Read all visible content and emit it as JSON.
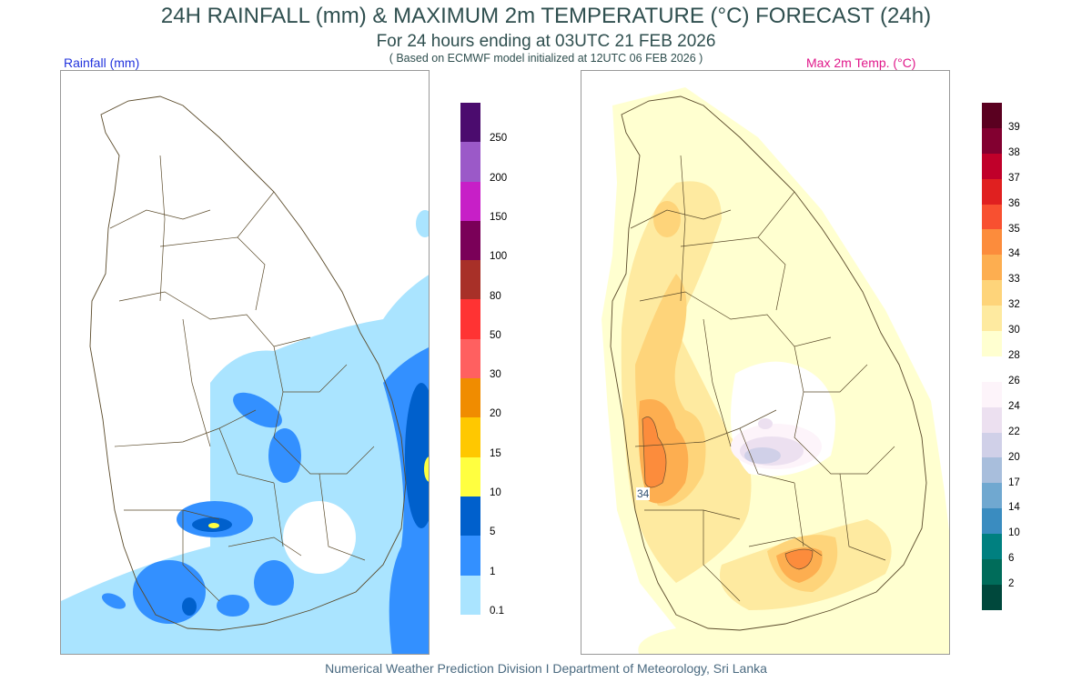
{
  "title": "24H RAINFALL (mm) & MAXIMUM 2m TEMPERATURE (°C) FORECAST (24h)",
  "subtitle": "For 24 hours ending at 03UTC 21 FEB 2026",
  "model_note": "( Based on ECMWF model initialized at 12UTC 06 FEB 2026 )",
  "rain_map": {
    "label": "Rainfall (mm)",
    "label_color": "#2233dd",
    "colorbar": {
      "colors": [
        "#4b0c6e",
        "#9b59c8",
        "#c71fc7",
        "#7a0058",
        "#a83028",
        "#ff3333",
        "#ff6060",
        "#f08c00",
        "#ffc800",
        "#ffff40",
        "#0060cc",
        "#3390ff",
        "#aae4ff"
      ],
      "labels": [
        "250",
        "200",
        "150",
        "100",
        "80",
        "50",
        "30",
        "20",
        "15",
        "10",
        "5",
        "1",
        "0.1"
      ]
    }
  },
  "temp_map": {
    "label": "Max 2m Temp. (°C)",
    "label_color": "#e0188a",
    "contour_label": "34",
    "colorbar": {
      "colors": [
        "#5a0020",
        "#820030",
        "#c0002a",
        "#e02020",
        "#f85030",
        "#fc8c3c",
        "#fdae50",
        "#fed47a",
        "#feeaa0",
        "#ffffd0",
        "#ffffff",
        "#fdf4fa",
        "#ece0f0",
        "#d0d0e8",
        "#a8bedc",
        "#70a8d0",
        "#3a8cc0",
        "#008080",
        "#006c5a",
        "#00483c"
      ],
      "labels": [
        "39",
        "38",
        "37",
        "36",
        "35",
        "34",
        "33",
        "32",
        "30",
        "28",
        "26",
        "24",
        "22",
        "20",
        "17",
        "14",
        "10",
        "6",
        "2"
      ]
    }
  },
  "footer": "Numerical Weather Prediction Division I Department of Meteorology, Sri Lanka"
}
